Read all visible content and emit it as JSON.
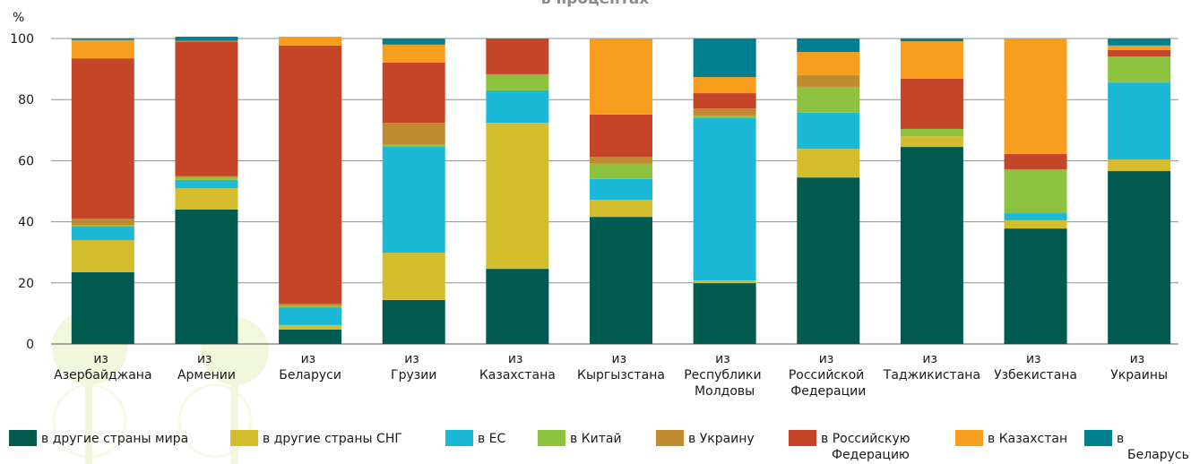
{
  "chart_data": {
    "type": "stacked_bar",
    "title": "в процентах",
    "y_label": "%",
    "categories": [
      "из Азербайджана",
      "из Армении",
      "из Беларуси",
      "из Грузии",
      "из Казахстана",
      "из Кыргызстана",
      "из Республики Молдовы",
      "из Российской Федерации",
      "из Таджикистана",
      "из Узбекистана",
      "из Украины"
    ],
    "series": [
      {
        "name": "в другие страны мира",
        "color": "#005a4f",
        "values": [
          23.5,
          44,
          4.7,
          14.4,
          24.6,
          41.6,
          19.9,
          54.5,
          64.5,
          37.8,
          56.6
        ]
      },
      {
        "name": "в другие страны СНГ",
        "color": "#d4bd2c",
        "values": [
          10.5,
          7,
          1.5,
          15.5,
          47.8,
          5.6,
          0.9,
          9.4,
          3.5,
          2.7,
          3.8
        ]
      },
      {
        "name": "в ЕС",
        "color": "#1cb8d8",
        "values": [
          4.5,
          2.7,
          5.8,
          34.6,
          10.6,
          6.8,
          53.1,
          11.8,
          0,
          2.3,
          25.2
        ]
      },
      {
        "name": "в Китай",
        "color": "#8dc23f",
        "values": [
          0.5,
          0.8,
          0.6,
          0.9,
          5.3,
          5,
          0.9,
          8.5,
          2.4,
          14.4,
          8.5
        ]
      },
      {
        "name": "в Украину",
        "color": "#c08a30",
        "values": [
          2,
          0.5,
          0.6,
          7,
          0,
          2.3,
          2.3,
          3.8,
          0,
          0,
          0
        ]
      },
      {
        "name": "в Российскую Федерацию",
        "color": "#c44527",
        "values": [
          52.5,
          44,
          84.5,
          19.7,
          11.7,
          13.8,
          5,
          0,
          16.4,
          5,
          2.1
        ]
      },
      {
        "name": "в Казахстан",
        "color": "#f89e1f",
        "values": [
          6,
          0.2,
          2.9,
          5.9,
          0,
          24.9,
          5.3,
          7.6,
          12.3,
          37.8,
          1.5
        ]
      },
      {
        "name": "в Беларусь",
        "color": "#00808e",
        "values": [
          0.5,
          1.4,
          0,
          2,
          0,
          0,
          12.6,
          4.4,
          0.9,
          0,
          2.3
        ]
      }
    ],
    "ylim": [
      0,
      100
    ],
    "yticks": [
      0,
      20,
      40,
      60,
      80,
      100
    ],
    "grid": true
  }
}
